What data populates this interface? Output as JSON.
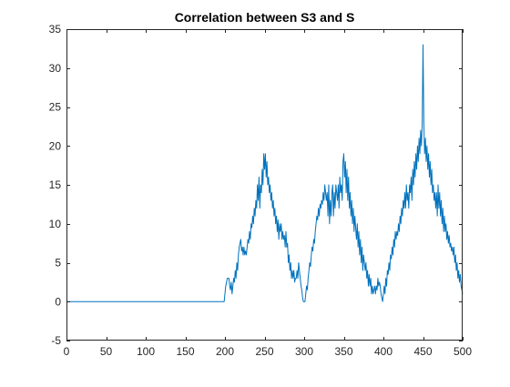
{
  "chart_data": {
    "type": "line",
    "title": "Correlation between S3 and S",
    "xlabel": "",
    "ylabel": "",
    "xlim": [
      0,
      500
    ],
    "ylim": [
      -5,
      35
    ],
    "xticks": [
      0,
      50,
      100,
      150,
      200,
      250,
      300,
      350,
      400,
      450,
      500
    ],
    "yticks": [
      -5,
      0,
      5,
      10,
      15,
      20,
      25,
      30,
      35
    ],
    "grid": false,
    "legend": "none",
    "series": [
      {
        "color": "#0072BD",
        "points": [
          [
            0,
            0
          ],
          [
            199,
            0
          ],
          [
            201,
            2
          ],
          [
            203,
            3
          ],
          [
            205,
            3
          ],
          [
            206,
            2
          ],
          [
            207,
            1.5
          ],
          [
            208,
            2.5
          ],
          [
            209,
            1
          ],
          [
            211,
            3
          ],
          [
            212,
            2.5
          ],
          [
            213,
            4
          ],
          [
            214,
            3
          ],
          [
            215,
            5
          ],
          [
            216,
            4
          ],
          [
            217,
            6
          ],
          [
            218,
            7
          ],
          [
            219,
            7.5
          ],
          [
            220,
            8
          ],
          [
            221,
            6.5
          ],
          [
            222,
            7
          ],
          [
            223,
            6
          ],
          [
            224,
            7
          ],
          [
            225,
            6
          ],
          [
            226,
            6.5
          ],
          [
            227,
            6
          ],
          [
            228,
            7
          ],
          [
            229,
            8
          ],
          [
            230,
            7.5
          ],
          [
            231,
            9
          ],
          [
            232,
            8
          ],
          [
            233,
            10
          ],
          [
            234,
            9.5
          ],
          [
            235,
            11
          ],
          [
            236,
            10
          ],
          [
            237,
            12
          ],
          [
            238,
            11
          ],
          [
            239,
            13
          ],
          [
            240,
            12
          ],
          [
            241,
            15
          ],
          [
            242,
            13
          ],
          [
            243,
            16
          ],
          [
            244,
            12
          ],
          [
            245,
            15
          ],
          [
            246,
            14
          ],
          [
            247,
            17
          ],
          [
            248,
            15
          ],
          [
            249,
            19
          ],
          [
            250,
            17
          ],
          [
            251,
            19
          ],
          [
            252,
            16
          ],
          [
            253,
            18
          ],
          [
            254,
            15
          ],
          [
            255,
            16
          ],
          [
            256,
            14
          ],
          [
            257,
            15
          ],
          [
            258,
            13
          ],
          [
            259,
            14
          ],
          [
            260,
            12
          ],
          [
            261,
            13
          ],
          [
            262,
            11
          ],
          [
            263,
            12
          ],
          [
            264,
            10
          ],
          [
            265,
            11
          ],
          [
            266,
            9
          ],
          [
            267,
            10.5
          ],
          [
            268,
            8
          ],
          [
            269,
            10
          ],
          [
            270,
            9
          ],
          [
            271,
            10
          ],
          [
            272,
            8
          ],
          [
            273,
            9
          ],
          [
            274,
            8
          ],
          [
            275,
            8.5
          ],
          [
            276,
            7
          ],
          [
            277,
            9
          ],
          [
            278,
            7
          ],
          [
            279,
            7.5
          ],
          [
            280,
            5
          ],
          [
            281,
            6
          ],
          [
            282,
            4
          ],
          [
            283,
            5
          ],
          [
            284,
            3
          ],
          [
            285,
            4
          ],
          [
            286,
            3
          ],
          [
            287,
            4
          ],
          [
            288,
            2.5
          ],
          [
            289,
            3
          ],
          [
            290,
            3
          ],
          [
            291,
            4
          ],
          [
            292,
            3
          ],
          [
            293,
            5
          ],
          [
            294,
            4
          ],
          [
            295,
            3
          ],
          [
            296,
            2
          ],
          [
            297,
            1.5
          ],
          [
            298,
            0.5
          ],
          [
            299,
            0
          ],
          [
            301,
            0
          ],
          [
            302,
            1
          ],
          [
            303,
            2
          ],
          [
            304,
            1.5
          ],
          [
            305,
            3
          ],
          [
            306,
            4
          ],
          [
            307,
            5
          ],
          [
            308,
            4.5
          ],
          [
            309,
            6
          ],
          [
            310,
            7
          ],
          [
            311,
            6.5
          ],
          [
            312,
            8
          ],
          [
            313,
            7.5
          ],
          [
            314,
            9
          ],
          [
            315,
            10
          ],
          [
            316,
            11
          ],
          [
            317,
            10.5
          ],
          [
            318,
            12
          ],
          [
            319,
            11
          ],
          [
            320,
            12.5
          ],
          [
            321,
            12
          ],
          [
            322,
            13
          ],
          [
            323,
            12.5
          ],
          [
            324,
            14
          ],
          [
            325,
            13
          ],
          [
            326,
            15
          ],
          [
            327,
            14
          ],
          [
            328,
            13
          ],
          [
            329,
            14
          ],
          [
            330,
            11
          ],
          [
            331,
            15
          ],
          [
            332,
            10
          ],
          [
            333,
            13
          ],
          [
            334,
            11
          ],
          [
            335,
            14
          ],
          [
            336,
            15
          ],
          [
            337,
            11
          ],
          [
            338,
            14
          ],
          [
            339,
            12
          ],
          [
            340,
            15
          ],
          [
            341,
            14
          ],
          [
            342,
            13
          ],
          [
            343,
            15
          ],
          [
            344,
            12
          ],
          [
            345,
            16
          ],
          [
            346,
            14
          ],
          [
            347,
            15
          ],
          [
            348,
            13
          ],
          [
            349,
            18
          ],
          [
            350,
            19
          ],
          [
            351,
            16
          ],
          [
            352,
            18
          ],
          [
            353,
            14
          ],
          [
            354,
            17
          ],
          [
            355,
            13
          ],
          [
            356,
            16
          ],
          [
            357,
            12
          ],
          [
            358,
            14
          ],
          [
            359,
            11
          ],
          [
            360,
            13
          ],
          [
            361,
            10
          ],
          [
            362,
            12
          ],
          [
            363,
            9
          ],
          [
            364,
            11
          ],
          [
            365,
            9.5
          ],
          [
            366,
            8
          ],
          [
            367,
            10
          ],
          [
            368,
            7
          ],
          [
            369,
            9
          ],
          [
            370,
            6
          ],
          [
            371,
            8
          ],
          [
            372,
            5
          ],
          [
            373,
            7
          ],
          [
            374,
            4
          ],
          [
            375,
            6
          ],
          [
            376,
            5
          ],
          [
            377,
            4
          ],
          [
            378,
            5
          ],
          [
            379,
            3
          ],
          [
            380,
            4
          ],
          [
            381,
            2
          ],
          [
            382,
            3.5
          ],
          [
            383,
            2
          ],
          [
            384,
            3
          ],
          [
            385,
            1
          ],
          [
            386,
            2
          ],
          [
            387,
            1
          ],
          [
            388,
            1.5
          ],
          [
            389,
            2
          ],
          [
            390,
            1
          ],
          [
            391,
            2
          ],
          [
            392,
            1.5
          ],
          [
            393,
            3
          ],
          [
            394,
            2
          ],
          [
            395,
            2.5
          ],
          [
            396,
            2
          ],
          [
            397,
            1
          ],
          [
            398,
            0.5
          ],
          [
            399,
            0
          ],
          [
            400,
            1
          ],
          [
            401,
            2
          ],
          [
            402,
            1
          ],
          [
            403,
            3
          ],
          [
            404,
            2
          ],
          [
            405,
            4
          ],
          [
            406,
            3.5
          ],
          [
            407,
            5
          ],
          [
            408,
            4
          ],
          [
            409,
            6
          ],
          [
            410,
            5.5
          ],
          [
            411,
            7
          ],
          [
            412,
            6
          ],
          [
            413,
            8
          ],
          [
            414,
            7
          ],
          [
            415,
            9
          ],
          [
            416,
            8
          ],
          [
            417,
            9
          ],
          [
            418,
            8.5
          ],
          [
            419,
            10
          ],
          [
            420,
            9
          ],
          [
            421,
            11
          ],
          [
            422,
            10
          ],
          [
            423,
            12
          ],
          [
            424,
            11
          ],
          [
            425,
            13
          ],
          [
            426,
            12
          ],
          [
            427,
            14
          ],
          [
            428,
            12
          ],
          [
            429,
            15
          ],
          [
            430,
            13
          ],
          [
            431,
            14
          ],
          [
            432,
            12
          ],
          [
            433,
            15
          ],
          [
            434,
            14
          ],
          [
            435,
            16
          ],
          [
            436,
            13
          ],
          [
            437,
            17
          ],
          [
            438,
            15
          ],
          [
            439,
            18
          ],
          [
            440,
            16
          ],
          [
            441,
            19
          ],
          [
            442,
            17
          ],
          [
            443,
            20
          ],
          [
            444,
            18
          ],
          [
            445,
            21
          ],
          [
            446,
            19
          ],
          [
            447,
            22
          ],
          [
            448,
            20
          ],
          [
            449,
            23
          ],
          [
            450,
            33
          ],
          [
            451,
            23
          ],
          [
            452,
            19
          ],
          [
            453,
            21
          ],
          [
            454,
            18
          ],
          [
            455,
            20
          ],
          [
            456,
            17
          ],
          [
            457,
            19
          ],
          [
            458,
            16
          ],
          [
            459,
            18
          ],
          [
            460,
            15
          ],
          [
            461,
            17
          ],
          [
            462,
            14
          ],
          [
            463,
            15
          ],
          [
            464,
            13
          ],
          [
            465,
            14
          ],
          [
            466,
            12
          ],
          [
            467,
            14
          ],
          [
            468,
            11
          ],
          [
            469,
            15
          ],
          [
            470,
            12
          ],
          [
            471,
            14
          ],
          [
            472,
            11
          ],
          [
            473,
            13
          ],
          [
            474,
            10
          ],
          [
            475,
            12
          ],
          [
            476,
            9
          ],
          [
            477,
            11
          ],
          [
            478,
            9
          ],
          [
            479,
            10
          ],
          [
            480,
            8
          ],
          [
            481,
            9
          ],
          [
            482,
            7.5
          ],
          [
            483,
            8.5
          ],
          [
            484,
            7
          ],
          [
            485,
            7.5
          ],
          [
            486,
            6.5
          ],
          [
            487,
            7
          ],
          [
            488,
            6
          ],
          [
            489,
            7
          ],
          [
            490,
            5
          ],
          [
            491,
            6
          ],
          [
            492,
            4
          ],
          [
            493,
            5
          ],
          [
            494,
            3
          ],
          [
            495,
            4
          ],
          [
            496,
            2.5
          ],
          [
            497,
            3.5
          ],
          [
            498,
            2
          ],
          [
            499,
            1.5
          ],
          [
            500,
            1
          ]
        ]
      }
    ]
  }
}
